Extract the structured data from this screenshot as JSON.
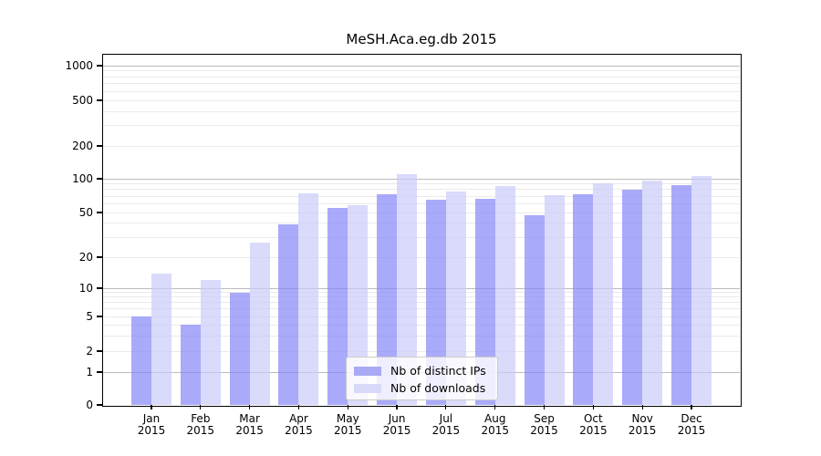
{
  "chart_data": {
    "type": "bar",
    "title": "MeSH.Aca.eg.db 2015",
    "categories": [
      "Jan",
      "Feb",
      "Mar",
      "Apr",
      "May",
      "Jun",
      "Jul",
      "Aug",
      "Sep",
      "Oct",
      "Nov",
      "Dec"
    ],
    "category_year": "2015",
    "series": [
      {
        "name": "Nb of distinct IPs",
        "color": "rgba(134,134,248,0.7)",
        "legend_color": "#a9a9f6",
        "values": [
          5,
          4,
          9,
          39,
          55,
          73,
          65,
          66,
          47,
          73,
          80,
          88
        ]
      },
      {
        "name": "Nb of downloads",
        "color": "rgba(203,203,249,0.7)",
        "legend_color": "#d8d8f9",
        "values": [
          14,
          12,
          27,
          74,
          58,
          110,
          77,
          86,
          72,
          91,
          97,
          107
        ]
      }
    ],
    "xlabel": "",
    "ylabel": "",
    "y_axis": {
      "scale": "symlog",
      "ticks": [
        0,
        1,
        2,
        5,
        10,
        20,
        50,
        100,
        200,
        500,
        1000
      ],
      "major_gridlines": [
        1,
        10,
        100,
        1000
      ],
      "minor_gridlines": [
        2,
        3,
        4,
        5,
        6,
        7,
        8,
        9,
        20,
        30,
        40,
        50,
        60,
        70,
        80,
        90,
        200,
        300,
        400,
        500,
        600,
        700,
        800,
        900
      ],
      "ylim_top_approx": 1250
    },
    "legend_position": "lower center",
    "grid": true
  },
  "colors": {
    "background": "#ffffff",
    "spine": "#000000",
    "major_grid": "#bbbbbb",
    "minor_grid": "#eaeaea"
  }
}
